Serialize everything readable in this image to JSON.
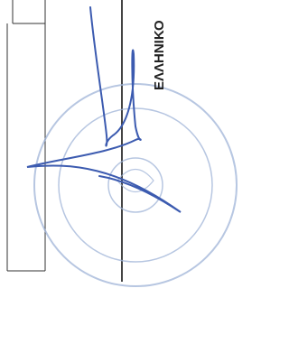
{
  "document": {
    "heading": "ΕΛΛΗΝΙΚΟ"
  }
}
